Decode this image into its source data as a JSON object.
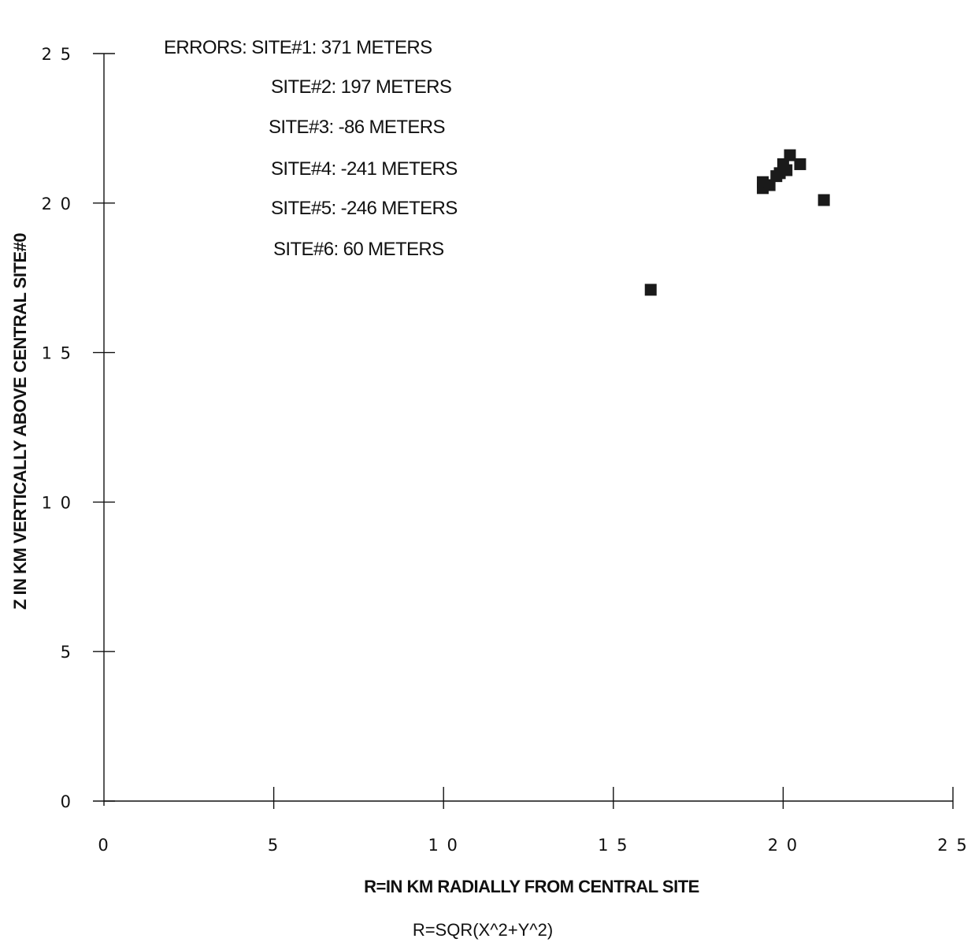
{
  "chart_data": {
    "type": "scatter",
    "xlabel": "R=IN KM RADIALLY FROM CENTRAL SITE",
    "xlabel_sub": "R=SQR(X^2+Y^2)",
    "ylabel": "Z IN KM VERTICALLY ABOVE CENTRAL SITE#0",
    "xlim": [
      0,
      25
    ],
    "ylim": [
      0,
      25
    ],
    "x_ticks": [
      0,
      5,
      10,
      15,
      20,
      25
    ],
    "y_ticks": [
      0,
      5,
      10,
      15,
      20,
      25
    ],
    "x_tick_labels": [
      "0",
      "5",
      "1 0",
      "1 5",
      "2 0",
      "2 5"
    ],
    "y_tick_labels": [
      "0",
      "5",
      "1 0",
      "1 5",
      "2 0",
      "2 5"
    ],
    "grid": false,
    "marker": "square",
    "marker_color": "#1a1a1a",
    "annotations": [
      "ERRORS: SITE#1: 371 METERS",
      "SITE#2: 197 METERS",
      "SITE#3: -86 METERS",
      "SITE#4: -241 METERS",
      "SITE#5: -246 METERS",
      "SITE#6: 60 METERS"
    ],
    "points": [
      {
        "x": 16.1,
        "y": 17.1
      },
      {
        "x": 19.4,
        "y": 20.5
      },
      {
        "x": 19.4,
        "y": 20.7
      },
      {
        "x": 19.6,
        "y": 20.6
      },
      {
        "x": 19.8,
        "y": 20.9
      },
      {
        "x": 19.9,
        "y": 21.0
      },
      {
        "x": 20.0,
        "y": 21.3
      },
      {
        "x": 20.1,
        "y": 21.1
      },
      {
        "x": 20.2,
        "y": 21.6
      },
      {
        "x": 20.5,
        "y": 21.3
      },
      {
        "x": 21.2,
        "y": 20.1
      }
    ]
  }
}
